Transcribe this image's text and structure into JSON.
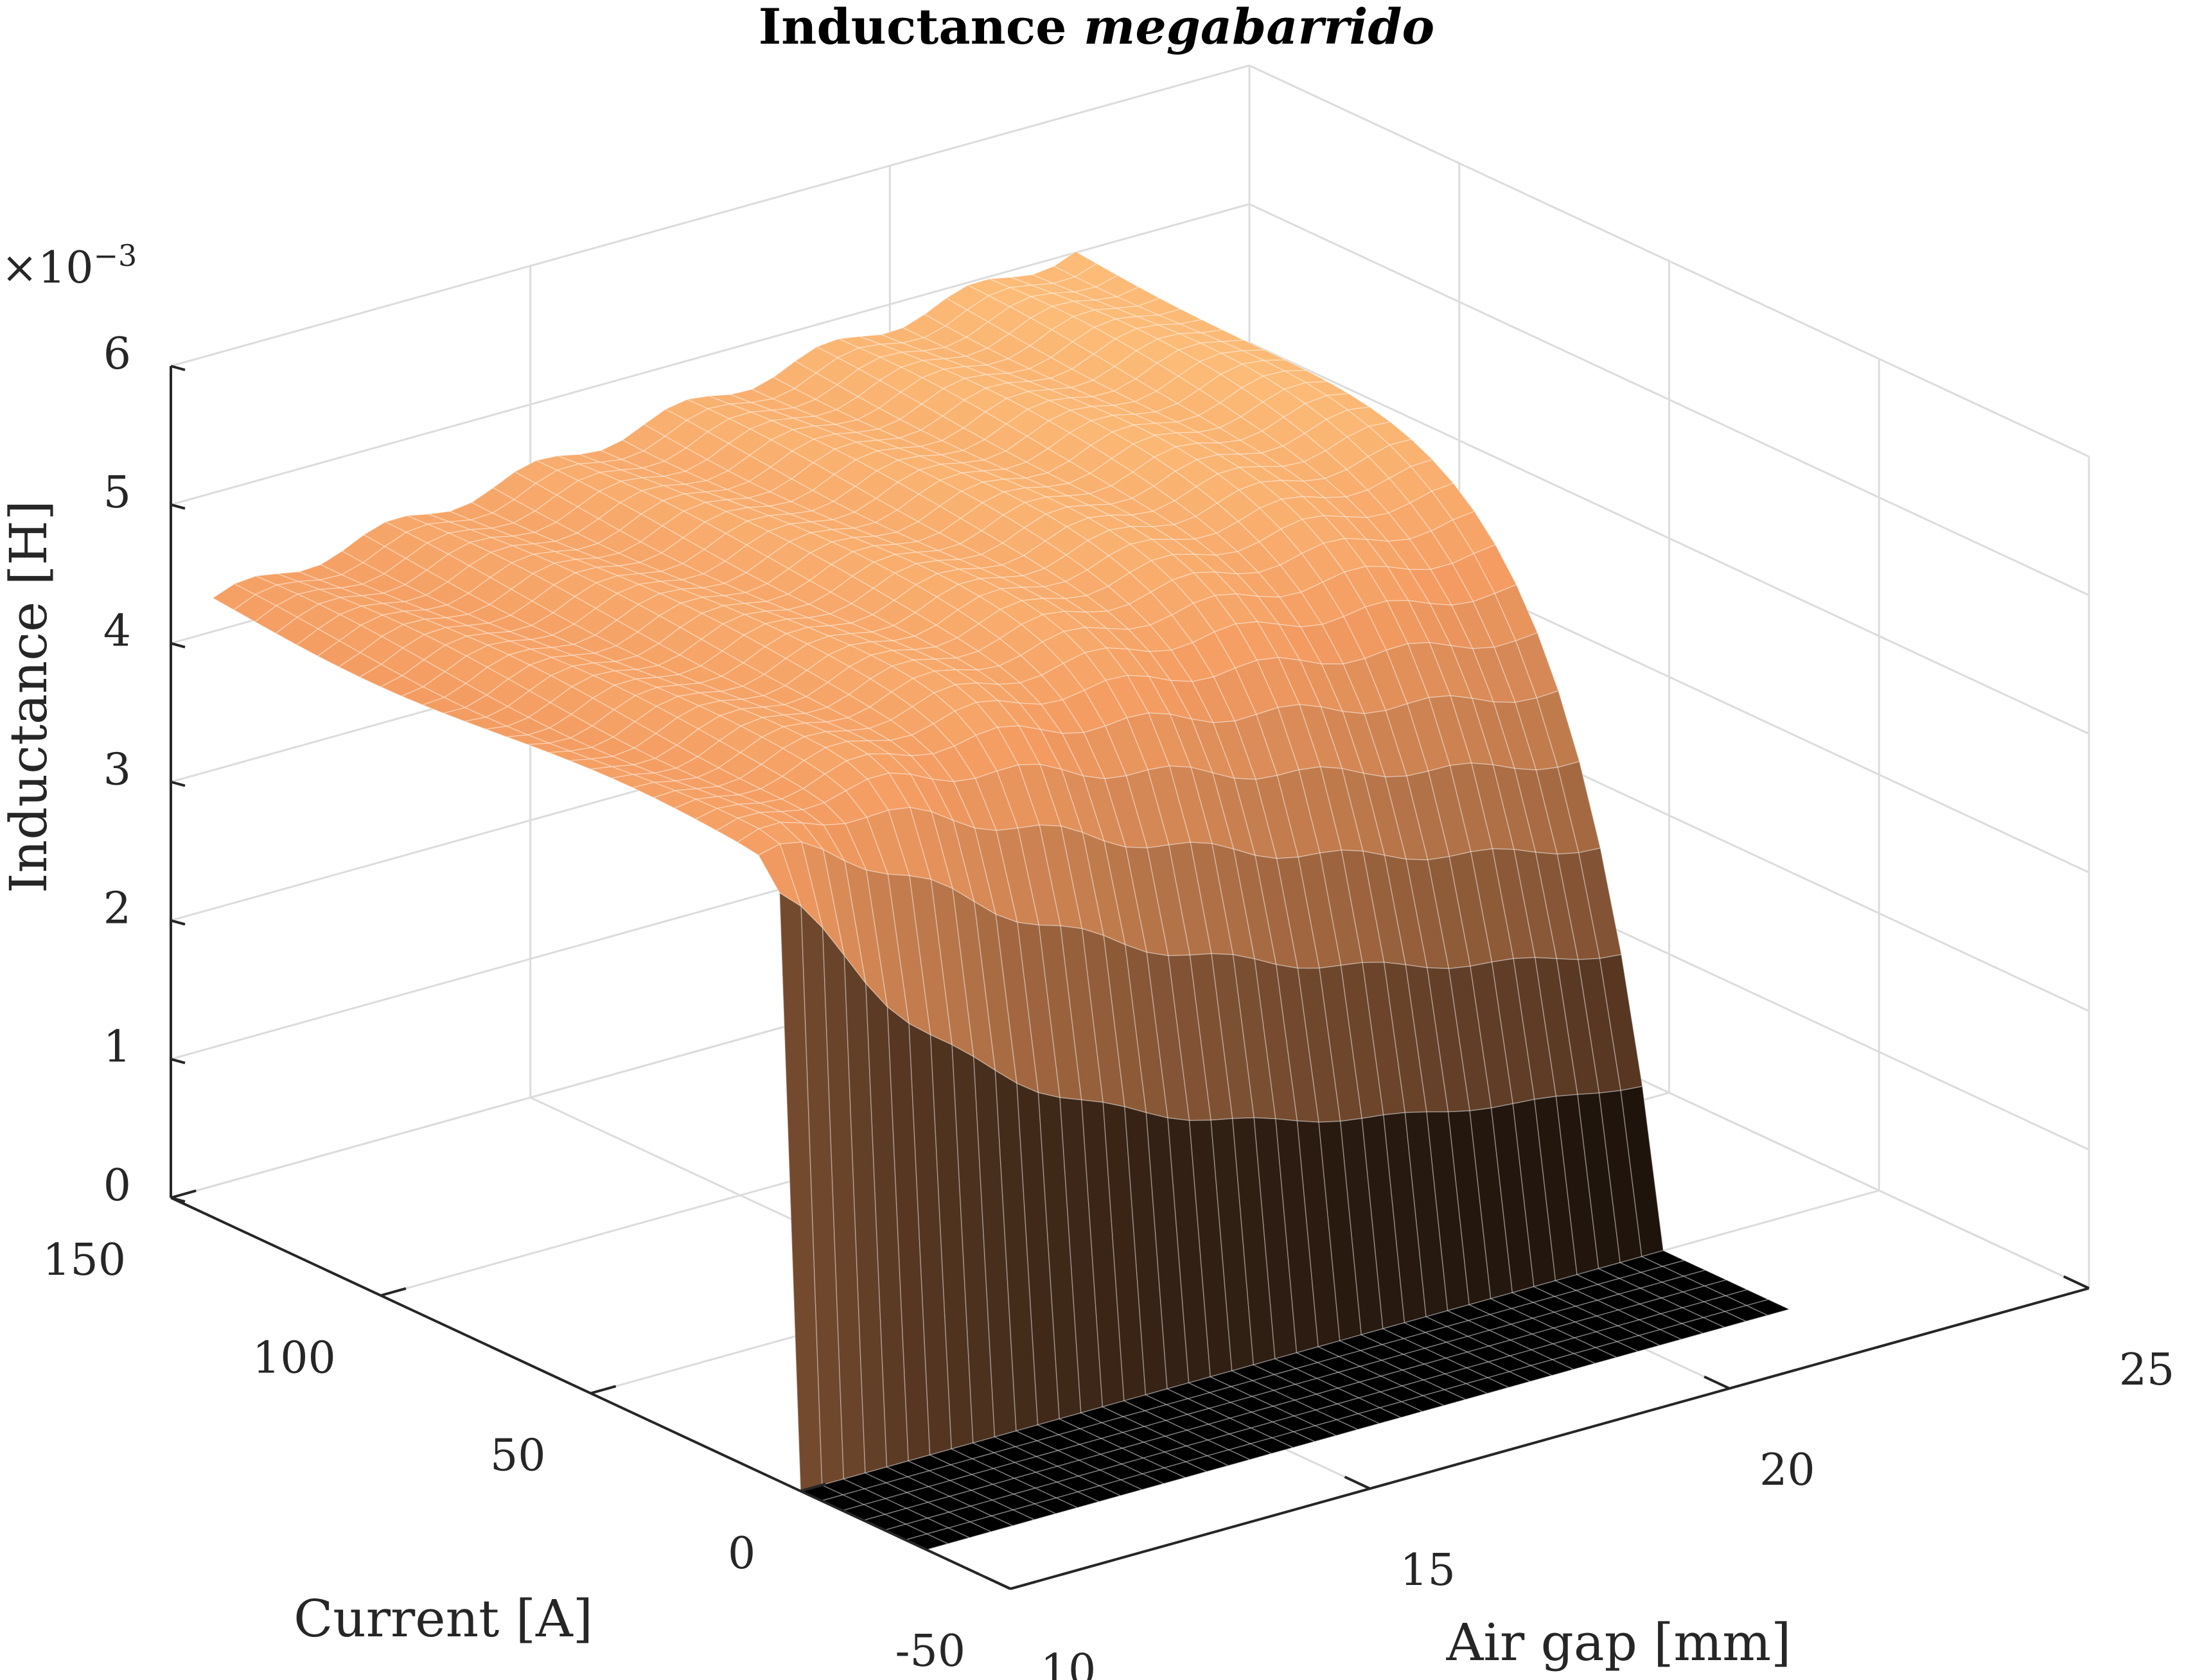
{
  "chart_data": {
    "type": "surface",
    "title": "Inductance",
    "title_italic": "megabarrido",
    "xlabel": "Air gap [mm]",
    "ylabel": "Current [A]",
    "zlabel": "Inductance [H]",
    "z_exponent_label": "×10",
    "z_exponent_power": "−3",
    "xlim": [
      10,
      25
    ],
    "ylim": [
      -50,
      150
    ],
    "zlim": [
      0,
      0.006
    ],
    "x_ticks": [
      "10",
      "15",
      "20",
      "25"
    ],
    "y_ticks": [
      "-50",
      "0",
      "50",
      "100",
      "150"
    ],
    "z_ticks": [
      "0",
      "1",
      "2",
      "3",
      "4",
      "5",
      "6"
    ],
    "grid": true,
    "colormap": "copper",
    "colormap_colors": [
      "#000000",
      "#3d2718",
      "#7a4e31",
      "#b77549",
      "#f49c62",
      "#ffc77f"
    ],
    "surface_description_values": {
      "x_range_mm": [
        10,
        22
      ],
      "current_range_A": [
        -30,
        140
      ],
      "plateau_level_H": 0.0045,
      "zero_level_H": 0.0,
      "step_current_A": 0
    },
    "series": [
      {
        "current_A": 0,
        "air_gap_mm": [
          10,
          12,
          14,
          16,
          18,
          20,
          22
        ],
        "inductance_H": [
          0.0002,
          0.0003,
          0.0003,
          0.0002,
          0.0002,
          0.0002,
          0.0002
        ]
      },
      {
        "current_A": 5,
        "air_gap_mm": [
          10,
          12,
          14,
          16,
          18,
          20,
          22
        ],
        "inductance_H": [
          0.0032,
          0.0027,
          0.0021,
          0.0016,
          0.0011,
          0.0008,
          0.0005
        ]
      },
      {
        "current_A": 10,
        "air_gap_mm": [
          10,
          12,
          14,
          16,
          18,
          20,
          22
        ],
        "inductance_H": [
          0.0042,
          0.004,
          0.0036,
          0.0031,
          0.0027,
          0.0023,
          0.0018
        ]
      },
      {
        "current_A": 20,
        "air_gap_mm": [
          10,
          12,
          14,
          16,
          18,
          20,
          22
        ],
        "inductance_H": [
          0.0045,
          0.0045,
          0.0045,
          0.0046,
          0.0046,
          0.0047,
          0.0048
        ]
      },
      {
        "current_A": 140,
        "air_gap_mm": [
          10,
          12,
          14,
          16,
          18,
          20,
          22
        ],
        "inductance_H": [
          0.0045,
          0.0046,
          0.0047,
          0.0048,
          0.005,
          0.0051,
          0.0052
        ]
      }
    ]
  }
}
